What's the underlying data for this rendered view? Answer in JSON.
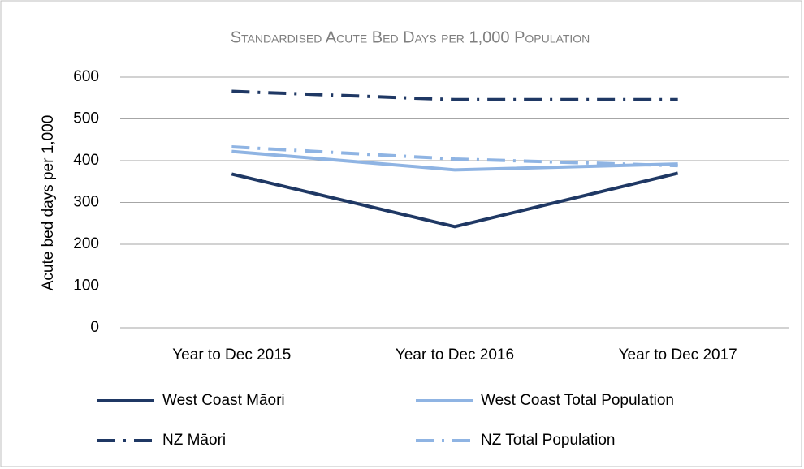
{
  "chart_data": {
    "type": "line",
    "title": "Standardised Acute Bed Days per 1,000 Population",
    "y_label": "Acute bed days per 1,000",
    "categories": [
      "Year to Dec 2015",
      "Year to Dec 2016",
      "Year to Dec 2017"
    ],
    "series": [
      {
        "name": "West Coast Māori",
        "color": "#1f3864",
        "dash": "solid",
        "values": [
          368,
          242,
          370
        ]
      },
      {
        "name": "West Coast Total Population",
        "color": "#8fb4e3",
        "dash": "solid",
        "values": [
          422,
          378,
          392
        ]
      },
      {
        "name": "NZ Māori",
        "color": "#1f3864",
        "dash": "dashdot",
        "values": [
          566,
          546,
          546
        ]
      },
      {
        "name": "NZ Total Population",
        "color": "#8fb4e3",
        "dash": "dashdot",
        "values": [
          433,
          404,
          388
        ]
      }
    ],
    "ylim": [
      0,
      600
    ],
    "yticks": [
      0,
      100,
      200,
      300,
      400,
      500,
      600
    ],
    "grid": true
  }
}
